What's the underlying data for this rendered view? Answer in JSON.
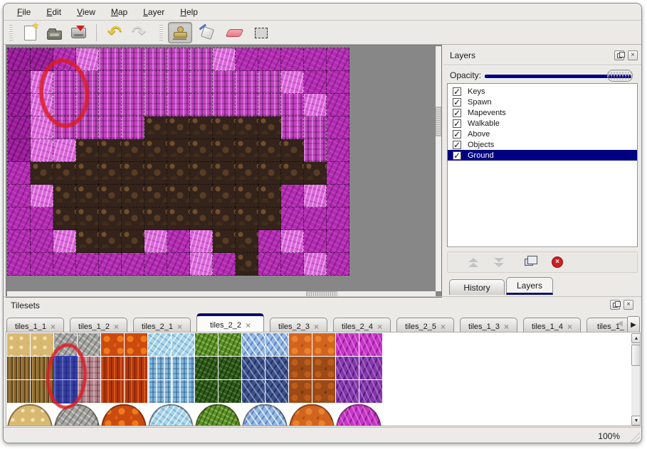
{
  "menu": {
    "items": [
      "File",
      "Edit",
      "View",
      "Map",
      "Layer",
      "Help"
    ]
  },
  "toolbar": {
    "tools": [
      "new-map",
      "open-map",
      "save-map",
      "undo",
      "redo",
      "stamp-tool",
      "fill-tool",
      "eraser-tool",
      "select-tool"
    ],
    "active_tool": "stamp-tool"
  },
  "map_view": {
    "tile_size": 32,
    "grid_cols": 15,
    "grid_rows": 10,
    "legend": {
      "1": "magenta-dark-scales",
      "2": "magenta-medium-scales",
      "3": "pink-bright-rough",
      "4": "magenta-pillars",
      "B": "brown-rock"
    },
    "rows": [
      "112344444322222",
      "134444444444322",
      "134444444444432",
      "134444BBBBBB442",
      "133BBBBBBBBBB42",
      "2BBBBBBBBBBBBB2",
      "23BBBBBBBBBB232",
      "22BBBBBBBBBB222",
      "223BBB323BB2322",
      "2222222232B2232"
    ],
    "annotation": "red-ellipse"
  },
  "layers_panel": {
    "title": "Layers",
    "opacity_label": "Opacity:",
    "opacity_percent": 100,
    "layers": [
      {
        "label": "Keys",
        "checked": true,
        "selected": false
      },
      {
        "label": "Spawn",
        "checked": true,
        "selected": false
      },
      {
        "label": "Mapevents",
        "checked": true,
        "selected": false
      },
      {
        "label": "Walkable",
        "checked": true,
        "selected": false
      },
      {
        "label": "Above",
        "checked": true,
        "selected": false
      },
      {
        "label": "Objects",
        "checked": true,
        "selected": false
      },
      {
        "label": "Ground",
        "checked": true,
        "selected": true
      }
    ],
    "buttons": [
      "move-layer-up",
      "move-layer-down",
      "duplicate-layer",
      "delete-layer"
    ],
    "tabs": [
      {
        "label": "History",
        "selected": false
      },
      {
        "label": "Layers",
        "selected": true
      }
    ]
  },
  "tilesets_panel": {
    "title": "Tilesets",
    "tabs": [
      {
        "label": "tiles_1_1",
        "selected": false
      },
      {
        "label": "tiles_1_2",
        "selected": false
      },
      {
        "label": "tiles_2_1",
        "selected": false
      },
      {
        "label": "tiles_2_2",
        "selected": true
      },
      {
        "label": "tiles_2_3",
        "selected": false
      },
      {
        "label": "tiles_2_4",
        "selected": false
      },
      {
        "label": "tiles_2_5",
        "selected": false
      },
      {
        "label": "tiles_1_3",
        "selected": false
      },
      {
        "label": "tiles_1_4",
        "selected": false
      },
      {
        "label": "tiles_1_",
        "selected": false
      }
    ],
    "close_glyph": "×",
    "grid_legend": {
      "A": "sand",
      "a": "brown-strands",
      "G": "gray-stone",
      "n": "navy-pillars-selected",
      "m": "mauve-pillars",
      "L": "lava-rock",
      "f": "fire-strands",
      "I": "ice-scales",
      "j": "ice-crystals",
      "V": "green-vines",
      "u": "dark-vines",
      "C": "blue-crystal",
      "d": "dark-crystal",
      "O": "orange-rock",
      "p": "dark-orange-rock",
      "W": "magenta-web",
      "x": "purple-web"
    },
    "grid_rows": [
      "AAGGLLIIVVCCOOWW",
      "aanmffjjuuddppxx",
      "aanmffjjuuddppxx"
    ],
    "blob_row": "AGLIVCOW",
    "blob_colors": {
      "A": "#d9b972",
      "G": "#a5a5a1",
      "L": "#cb4a10",
      "I": "#a6d4ea",
      "V": "#5d9329",
      "C": "#8fb6e4",
      "O": "#d2641f",
      "W": "#c437c4"
    },
    "selected_tile": {
      "col": 2,
      "row": 1,
      "row_span": 2
    }
  },
  "status_bar": {
    "zoom": "100%"
  },
  "colors": {
    "accent_navy": "#000080",
    "selection_blue": "#2e3ed6",
    "annotation_red": "#da1c26",
    "window_bg": "#eceae7",
    "map_bg_gray": "#878787"
  },
  "glyphs": {
    "check": "✓",
    "undo": "↶",
    "redo": "↷",
    "up": "▲",
    "down": "▼",
    "left": "◀",
    "right": "▶"
  }
}
